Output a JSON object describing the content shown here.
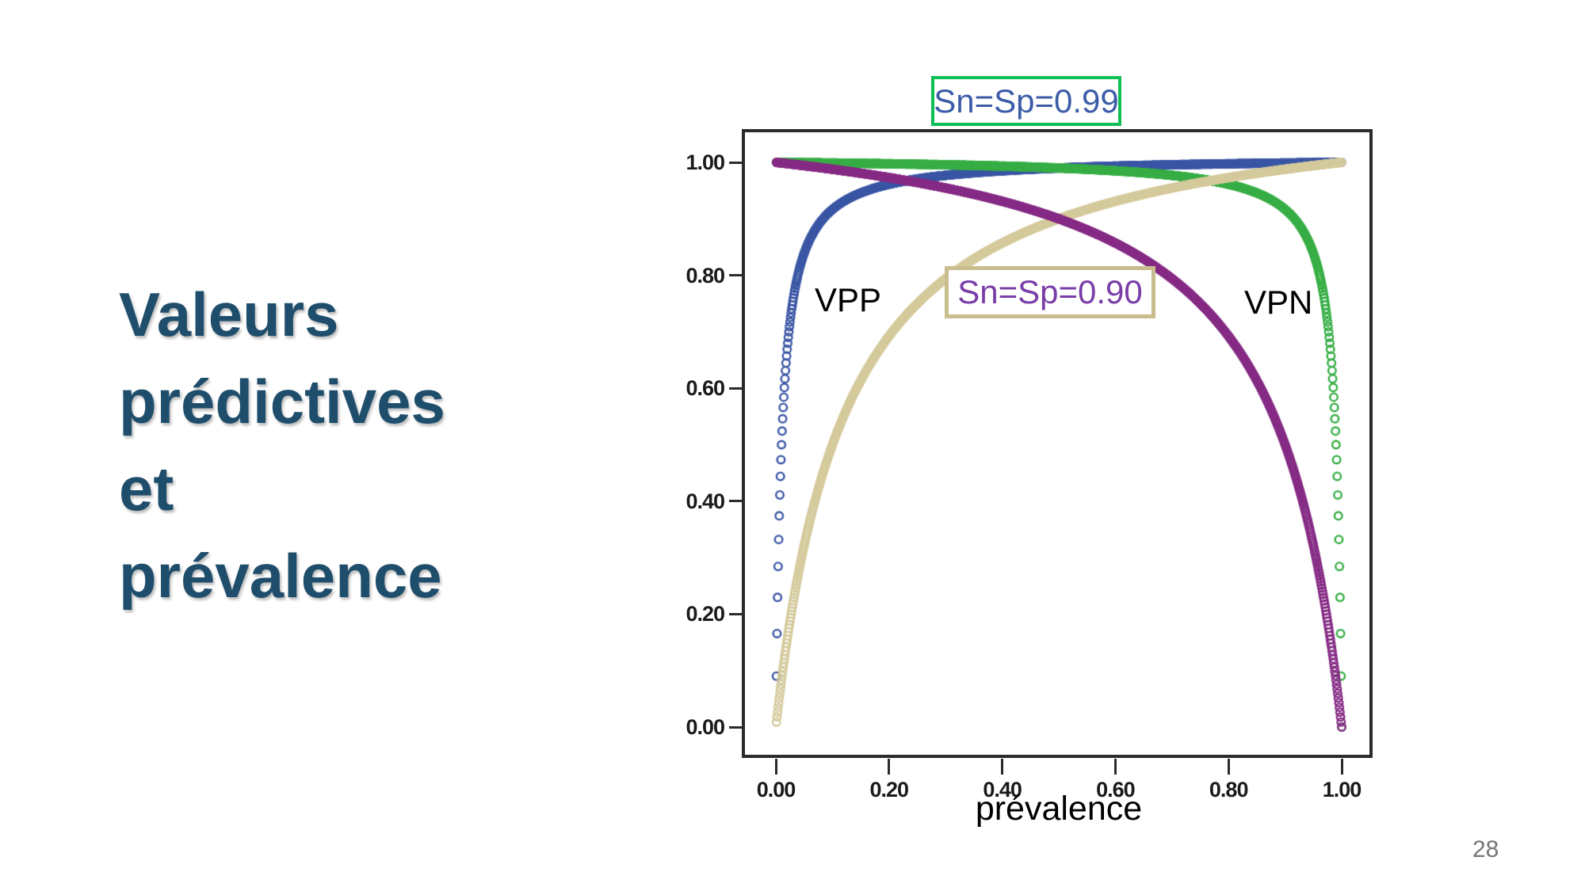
{
  "title": {
    "lines": [
      "Valeurs",
      "prédictives",
      "et",
      "prévalence"
    ],
    "color": "#1F4E6C"
  },
  "page_number": "28",
  "chart_data": {
    "type": "scatter",
    "title": "",
    "xlabel": "prévalence",
    "ylabel": "",
    "xlim": [
      0,
      1
    ],
    "ylim": [
      0,
      1
    ],
    "grid": false,
    "legend_position": "none",
    "marker": "open-circle",
    "x_ticks": [
      "0.00",
      "0.20",
      "0.40",
      "0.60",
      "0.80",
      "1.00"
    ],
    "y_ticks": [
      "1.00",
      "0.80",
      "0.60",
      "0.40",
      "0.20",
      "0.00"
    ],
    "frame_color": "#2B2B2B",
    "annotations": [
      {
        "text": "Sn=Sp=0.99",
        "text_color": "#3C5CA8",
        "border_color": "#0FBE54",
        "position": "above plot, top center"
      },
      {
        "text": "Sn=Sp=0.90",
        "text_color": "#7A3DA8",
        "border_color": "#C9BD8D",
        "position": "inside plot, upper middle"
      },
      {
        "text": "VPP",
        "text_color": "#000000",
        "position": "inside plot, upper left"
      },
      {
        "text": "VPN",
        "text_color": "#000000",
        "position": "inside plot, upper right"
      }
    ],
    "sampling": {
      "x_start": 0.001,
      "x_end": 1.0,
      "x_step": 0.001
    },
    "series": [
      {
        "name": "VPP (Sn=Sp=0.99)",
        "role": "VPP",
        "sn": 0.99,
        "sp": 0.99,
        "color": "#3A56A5",
        "anchor_points": {
          "x": [
            0.001,
            0.01,
            0.05,
            0.1,
            0.2,
            0.3,
            0.5,
            0.7,
            0.9,
            1.0
          ],
          "y": [
            0.09,
            0.5,
            0.839,
            0.917,
            0.961,
            0.977,
            0.99,
            0.996,
            0.999,
            1.0
          ]
        }
      },
      {
        "name": "VPN (Sn=Sp=0.99)",
        "role": "VPN",
        "sn": 0.99,
        "sp": 0.99,
        "color": "#37AE45",
        "anchor_points": {
          "x": [
            0.0,
            0.1,
            0.3,
            0.5,
            0.7,
            0.9,
            0.95,
            0.99,
            0.999,
            1.0
          ],
          "y": [
            1.0,
            0.999,
            0.996,
            0.99,
            0.977,
            0.917,
            0.839,
            0.5,
            0.09,
            0.0
          ]
        }
      },
      {
        "name": "VPP (Sn=Sp=0.90)",
        "role": "VPP",
        "sn": 0.9,
        "sp": 0.9,
        "color": "#D5CA9C",
        "anchor_points": {
          "x": [
            0.001,
            0.1,
            0.2,
            0.3,
            0.4,
            0.5,
            0.6,
            0.7,
            0.8,
            0.9,
            1.0
          ],
          "y": [
            0.009,
            0.5,
            0.692,
            0.794,
            0.857,
            0.9,
            0.931,
            0.955,
            0.973,
            0.988,
            1.0
          ]
        }
      },
      {
        "name": "VPN (Sn=Sp=0.90)",
        "role": "VPN",
        "sn": 0.9,
        "sp": 0.9,
        "color": "#862B85",
        "anchor_points": {
          "x": [
            0.0,
            0.1,
            0.2,
            0.3,
            0.4,
            0.5,
            0.6,
            0.7,
            0.8,
            0.9,
            1.0
          ],
          "y": [
            1.0,
            0.988,
            0.973,
            0.955,
            0.931,
            0.9,
            0.857,
            0.794,
            0.692,
            0.5,
            0.0
          ]
        }
      }
    ]
  }
}
